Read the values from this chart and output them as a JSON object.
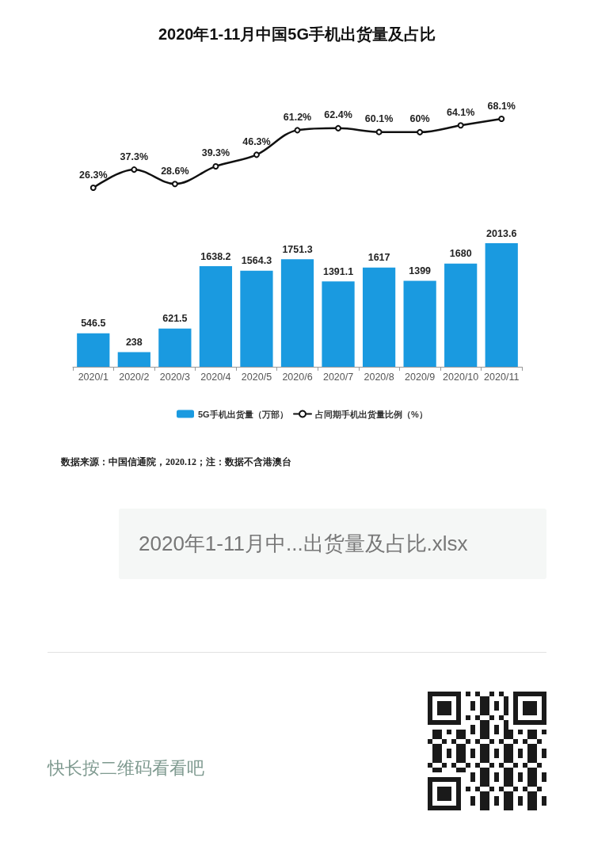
{
  "chart_data": [
    {
      "type": "line",
      "title": "2020年1-11月中国5G手机出货量及占比",
      "categories": [
        "2020/1",
        "2020/2",
        "2020/3",
        "2020/4",
        "2020/5",
        "2020/6",
        "2020/7",
        "2020/8",
        "2020/9",
        "2020/10",
        "2020/11"
      ],
      "series": [
        {
          "name": "占同期手机出货量比例（%）",
          "color": "#111111",
          "values": [
            26.3,
            37.3,
            28.6,
            39.3,
            46.3,
            61.2,
            62.4,
            60.1,
            60,
            64.1,
            68.1
          ],
          "value_labels": [
            "26.3%",
            "37.3%",
            "28.6%",
            "39.3%",
            "46.3%",
            "61.2%",
            "62.4%",
            "60.1%",
            "60%",
            "64.1%",
            "68.1%"
          ]
        }
      ],
      "marker": "circle",
      "legend": "bottom",
      "tick_labels": false
    },
    {
      "type": "bar",
      "categories": [
        "2020/1",
        "2020/2",
        "2020/3",
        "2020/4",
        "2020/5",
        "2020/6",
        "2020/7",
        "2020/8",
        "2020/9",
        "2020/10",
        "2020/11"
      ],
      "series": [
        {
          "name": "5G手机出货量（万部）",
          "color": "#1a9ae0",
          "values": [
            546.5,
            238,
            621.5,
            1638.2,
            1564.3,
            1751.3,
            1391.1,
            1617,
            1399,
            1680,
            2013.6
          ]
        }
      ],
      "data_labels": true,
      "legend": "bottom",
      "tick_labels": "x",
      "annotations": [
        "数据来源：中国信通院，2020.12；注：数据不含港澳台",
        "2020年1-11月中...出货量及占比.xlsx",
        "快长按二维码看看吧"
      ]
    }
  ]
}
